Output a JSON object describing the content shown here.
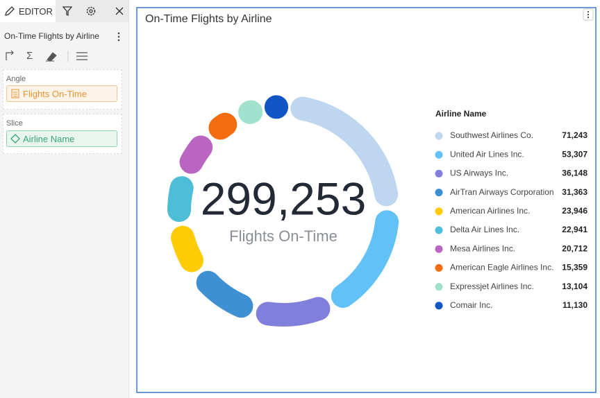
{
  "editor": {
    "tab": "EDITOR",
    "title": "On-Time Flights by Airline",
    "angle_label": "Angle",
    "angle_field": "Flights On-Time",
    "slice_label": "Slice",
    "slice_field": "Airline Name"
  },
  "chart_data": {
    "type": "donut",
    "title": "On-Time Flights by Airline",
    "center_value": 299253,
    "center_value_label": "299,253",
    "center_caption": "Flights On-Time",
    "legend_title": "Airline Name",
    "categories": [
      "Southwest Airlines Co.",
      "United Air Lines Inc.",
      "US Airways Inc.",
      "AirTran Airways Corporation",
      "American Airlines Inc.",
      "Delta Air Lines Inc.",
      "Mesa Airlines Inc.",
      "American Eagle Airlines Inc.",
      "Expressjet Airlines Inc.",
      "Comair Inc."
    ],
    "values": [
      71243,
      53307,
      36148,
      31363,
      23946,
      22941,
      20712,
      15359,
      13104,
      11130
    ],
    "value_labels": [
      "71,243",
      "53,307",
      "36,148",
      "31,363",
      "23,946",
      "22,941",
      "20,712",
      "15,359",
      "13,104",
      "11,130"
    ],
    "colors": [
      "#bed6f0",
      "#62c2f8",
      "#8080dc",
      "#3f8fd3",
      "#ffcb05",
      "#4ebdd7",
      "#b965c1",
      "#f46c10",
      "#a0e2cd",
      "#1256c6"
    ],
    "legend": "right"
  }
}
